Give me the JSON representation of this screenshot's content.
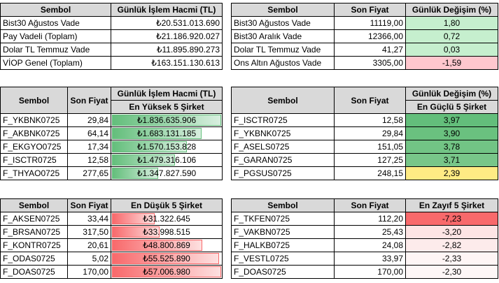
{
  "headers": {
    "sembol": "Sembol",
    "son_fiyat": "Son Fiyat",
    "hacim": "Günlük İşlem Hacmi (TL)",
    "degisim": "Günlük Değişim (%)"
  },
  "top_left": [
    {
      "sembol": "Bist30 Ağustos Vade",
      "value": "₺20.531.013.690"
    },
    {
      "sembol": "Pay Vadeli (Toplam)",
      "value": "₺21.186.920.027"
    },
    {
      "sembol": "Dolar TL Temmuz Vade",
      "value": "₺11.895.890.273"
    },
    {
      "sembol": "VİOP Genel (Toplam)",
      "value": "₺163.151.130.613"
    }
  ],
  "top_right": [
    {
      "sembol": "Bist30 Ağustos Vade",
      "fiyat": "11119,00",
      "degisim": "1,80",
      "color": "#c6efce"
    },
    {
      "sembol": "Bist30 Aralık Vade",
      "fiyat": "12366,00",
      "degisim": "0,72",
      "color": "#c6efce"
    },
    {
      "sembol": "Dolar TL Temmuz Vade",
      "fiyat": "41,27",
      "degisim": "0,03",
      "color": "#c6efce"
    },
    {
      "sembol": "Ons Altın Ağustos Vade",
      "fiyat": "3305,00",
      "degisim": "-1,59",
      "color": "#ffc7ce"
    }
  ],
  "mid_left": {
    "subheader": "En Yüksek 5 Şirket",
    "rows": [
      {
        "sembol": "F_YKBNK0725",
        "fiyat": "29,84",
        "hacim": "₺1.836.635.906",
        "fill": 1.0
      },
      {
        "sembol": "F_AKBNK0725",
        "fiyat": "64,14",
        "hacim": "₺1.683.131.185",
        "fill": 0.82
      },
      {
        "sembol": "F_EKGYO0725",
        "fiyat": "17,34",
        "hacim": "₺1.570.153.828",
        "fill": 0.69
      },
      {
        "sembol": "F_ISCTR0725",
        "fiyat": "12,58",
        "hacim": "₺1.479.316.106",
        "fill": 0.58
      },
      {
        "sembol": "F_THYAO0725",
        "fiyat": "277,65",
        "hacim": "₺1.347.827.590",
        "fill": 0.43
      }
    ]
  },
  "mid_right": {
    "subheader": "En Güçlü 5 Şirket",
    "rows": [
      {
        "sembol": "F_ISCTR0725",
        "fiyat": "12,58",
        "degisim": "3,97",
        "color": "#63be7b"
      },
      {
        "sembol": "F_YKBNK0725",
        "fiyat": "29,84",
        "degisim": "3,90",
        "color": "#6ac17f"
      },
      {
        "sembol": "F_ASELS0725",
        "fiyat": "151,05",
        "degisim": "3,78",
        "color": "#72c485"
      },
      {
        "sembol": "F_GARAN0725",
        "fiyat": "127,25",
        "degisim": "3,71",
        "color": "#78c689"
      },
      {
        "sembol": "F_PGSUS0725",
        "fiyat": "248,15",
        "degisim": "2,39",
        "color": "#ffeb84"
      }
    ]
  },
  "bot_left": {
    "subheader": "En Düşük 5 Şirket",
    "rows": [
      {
        "sembol": "F_AKSEN0725",
        "fiyat": "33,44",
        "hacim": "₺31.322.645",
        "fill": 0.4
      },
      {
        "sembol": "F_BRSAN0725",
        "fiyat": "317,50",
        "hacim": "₺33.998.515",
        "fill": 0.44
      },
      {
        "sembol": "F_KONTR0725",
        "fiyat": "20,61",
        "hacim": "₺48.800.869",
        "fill": 0.83
      },
      {
        "sembol": "F_ODAS0725",
        "fiyat": "5,02",
        "hacim": "₺55.525.890",
        "fill": 0.98
      },
      {
        "sembol": "F_DOAS0725",
        "fiyat": "170,00",
        "hacim": "₺57.006.980",
        "fill": 1.0
      }
    ]
  },
  "bot_right": {
    "subheader": "En Zayıf 5 Şirket",
    "rows": [
      {
        "sembol": "F_TKFEN0725",
        "fiyat": "112,20",
        "degisim": "-7,23",
        "color": "#f8696b"
      },
      {
        "sembol": "F_VAKBN0725",
        "fiyat": "25,43",
        "degisim": "-3,20",
        "color": "#fde4e4"
      },
      {
        "sembol": "F_HALKB0725",
        "fiyat": "24,08",
        "degisim": "-2,82",
        "color": "#fdebeb"
      },
      {
        "sembol": "F_VESTL0725",
        "fiyat": "33,97",
        "degisim": "-2,33",
        "color": "#fef5f5"
      },
      {
        "sembol": "F_DOAS0725",
        "fiyat": "170,00",
        "degisim": "-2,30",
        "color": "#fef7f7"
      }
    ]
  }
}
